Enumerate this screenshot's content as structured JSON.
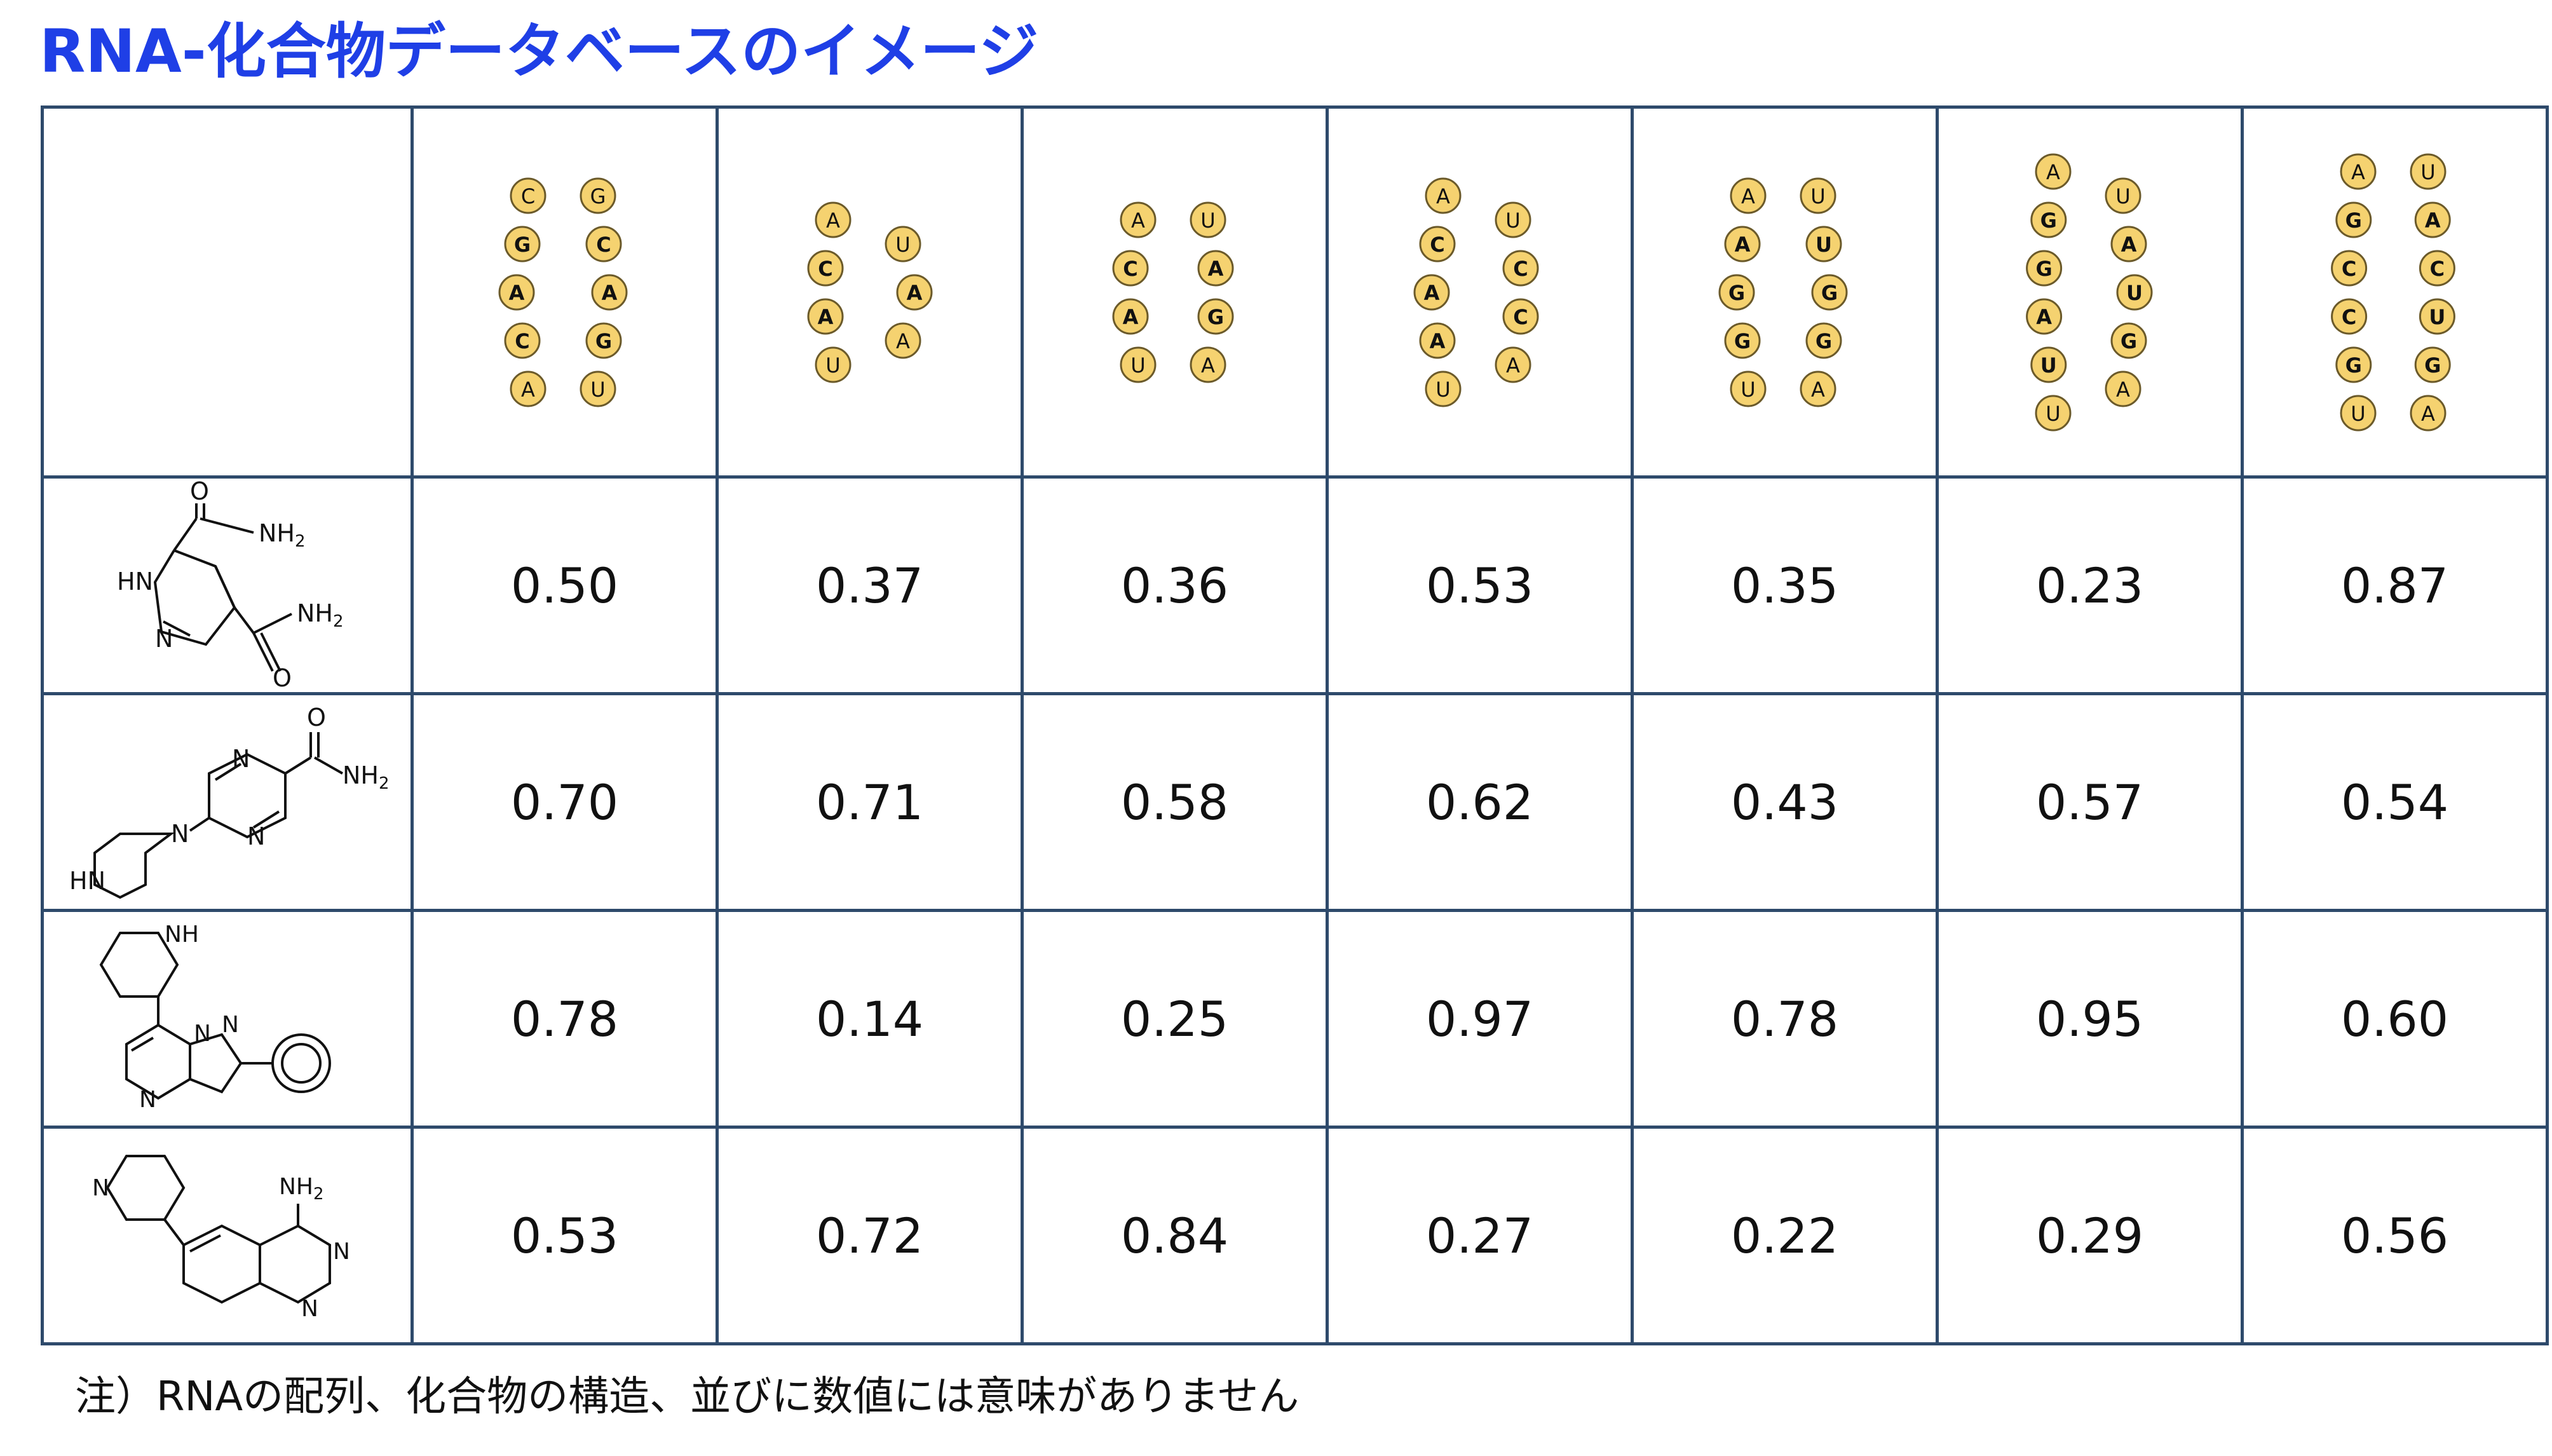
{
  "title": "RNA-化合物データベースのイメージ",
  "note": "注）RNAの配列、化合物の構造、並びに数値には意味がありません",
  "colors": {
    "title": "#1f3fe6",
    "grid": "#2e4a6b",
    "nucleotide_fill": "#f5d270",
    "nucleotide_stroke": "#6b5a2a"
  },
  "rna_columns": [
    {
      "left": [
        "C",
        "G",
        "A",
        "C",
        "A"
      ],
      "right": [
        "G",
        "C",
        "A",
        "G",
        "U"
      ],
      "bold": [
        "A"
      ]
    },
    {
      "left": [
        "A",
        "C",
        "A",
        "U"
      ],
      "right": [
        "U",
        "A",
        "A"
      ],
      "bold": [
        "C",
        "A2",
        "A3"
      ]
    },
    {
      "left": [
        "A",
        "C",
        "A",
        "U"
      ],
      "right": [
        "U",
        "A",
        "G",
        "A"
      ],
      "bold": [
        "C",
        "A2",
        "Ar2",
        "G"
      ]
    },
    {
      "left": [
        "A",
        "C",
        "A",
        "A",
        "U"
      ],
      "right": [
        "U",
        "C",
        "C",
        "A"
      ],
      "bold": [
        "C",
        "A2",
        "A3",
        "Cr",
        "Cr2"
      ]
    },
    {
      "left": [
        "A",
        "A",
        "G",
        "G",
        "U"
      ],
      "right": [
        "U",
        "U",
        "G",
        "G",
        "A"
      ],
      "bold": [
        "A2",
        "G",
        "G2",
        "U2",
        "Gr",
        "Gr2"
      ]
    },
    {
      "left": [
        "A",
        "G",
        "G",
        "A",
        "U",
        "U"
      ],
      "right": [
        "U",
        "A",
        "U",
        "G",
        "A"
      ],
      "bold": [
        "G",
        "G2",
        "A2",
        "U1"
      ]
    },
    {
      "left": [
        "A",
        "G",
        "C",
        "C",
        "G",
        "U"
      ],
      "right": [
        "U",
        "A",
        "C",
        "U",
        "G",
        "A"
      ],
      "bold": [
        "G",
        "C",
        "C2",
        "G2"
      ]
    }
  ],
  "compounds": [
    {
      "name": "imidazole-dicarboxamide",
      "labels": {
        "o1": "O",
        "nh2a": "NH2",
        "hn": "HN",
        "n": "N",
        "nh2b": "NH2",
        "o2": "O"
      }
    },
    {
      "name": "piperazinyl-pyrazine-carboxamide",
      "labels": {
        "o": "O",
        "nh2": "NH2",
        "n1": "N",
        "n2": "N",
        "n3": "N",
        "hn": "HN"
      }
    },
    {
      "name": "piperidinyl-pyrazolopyrimidine",
      "labels": {
        "nh": "NH",
        "n1": "N",
        "n2": "N",
        "n3": "N"
      }
    },
    {
      "name": "pyridinyl-quinazolinamine",
      "labels": {
        "n1": "N",
        "nh2": "NH2",
        "n2": "N",
        "n3": "N"
      }
    }
  ],
  "rows": [
    [
      "0.50",
      "0.37",
      "0.36",
      "0.53",
      "0.35",
      "0.23",
      "0.87"
    ],
    [
      "0.70",
      "0.71",
      "0.58",
      "0.62",
      "0.43",
      "0.57",
      "0.54"
    ],
    [
      "0.78",
      "0.14",
      "0.25",
      "0.97",
      "0.78",
      "0.95",
      "0.60"
    ],
    [
      "0.53",
      "0.72",
      "0.84",
      "0.27",
      "0.22",
      "0.29",
      "0.56"
    ]
  ]
}
